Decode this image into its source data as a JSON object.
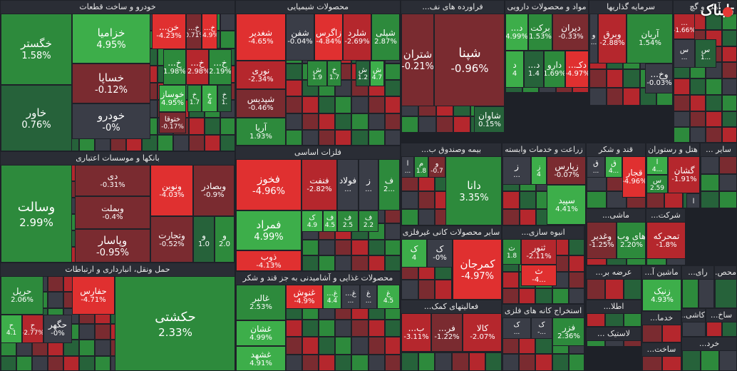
{
  "colors": {
    "strong_pos": "#3dae4a",
    "pos": "#2d8a3c",
    "weak_pos": "#26623a",
    "neutral": "#3a3d47",
    "weak_neg": "#7a2b30",
    "neg": "#b5272d",
    "strong_neg": "#e03030"
  },
  "logo": {
    "text": "تابناک"
  },
  "sectors": [
    {
      "id": "auto",
      "title": "خودرو و ساخت قطعات",
      "tiles": [
        {
          "sym": "خگستر",
          "chg": "1.58%"
        },
        {
          "sym": "خاور",
          "chg": "0.76%"
        },
        {
          "sym": "خزامیا",
          "chg": "4.95%"
        },
        {
          "sym": "خساپا",
          "chg": "-0.12%"
        },
        {
          "sym": "خودرو",
          "chg": "-0%"
        },
        {
          "sym": "خن...",
          "chg": "-4.23%"
        },
        {
          "sym": "خ...",
          "chg": "-0.71%"
        },
        {
          "sym": "خ...",
          "chg": "-4.9%"
        },
        {
          "sym": "خ...",
          "chg": "1.98%"
        },
        {
          "sym": "خ...",
          "chg": "-2.98%"
        },
        {
          "sym": "خ...",
          "chg": "2.19%"
        },
        {
          "sym": "خوساز",
          "chg": "4.95%"
        },
        {
          "sym": "خ",
          "chg": "1.7"
        },
        {
          "sym": "خ",
          "chg": "4"
        },
        {
          "sym": "خ",
          "chg": "1."
        },
        {
          "sym": "ختوقا",
          "chg": "-0.17%"
        }
      ]
    },
    {
      "id": "chem",
      "title": "محصولات شیمیایی",
      "tiles": [
        {
          "sym": "شغدیر",
          "chg": "-4.65%"
        },
        {
          "sym": "شفن",
          "chg": "-0.04%"
        },
        {
          "sym": "زاگرس",
          "chg": "-4.84%"
        },
        {
          "sym": "شلرد",
          "chg": "-2.69%"
        },
        {
          "sym": "شپلی",
          "chg": "2.87%"
        },
        {
          "sym": "نوری",
          "chg": "-2.34%"
        },
        {
          "sym": "شپدیس",
          "chg": "-0.46%"
        },
        {
          "sym": "آریا",
          "chg": "1.93%"
        },
        {
          "sym": "ش",
          "chg": "1.9"
        },
        {
          "sym": "خ",
          "chg": "1.7"
        },
        {
          "sym": "ش",
          "chg": "1.2"
        },
        {
          "sym": "ش",
          "chg": "4.7"
        }
      ]
    },
    {
      "id": "refinery",
      "title": "فراورده های نف...",
      "tiles": [
        {
          "sym": "شپنا",
          "chg": "-0.96%"
        },
        {
          "sym": "شتران",
          "chg": "-0.21%"
        },
        {
          "sym": "شاوان",
          "chg": "0.15%"
        }
      ]
    },
    {
      "id": "pharma",
      "title": "مواد و محصولات دارویی",
      "tiles": [
        {
          "sym": "دیران",
          "chg": "-0.33%"
        },
        {
          "sym": "برکت",
          "chg": "1.53%"
        },
        {
          "sym": "د...",
          "chg": "4.99%"
        },
        {
          "sym": "دکـ...",
          "chg": "-4.97%"
        },
        {
          "sym": "دارو",
          "chg": "1.69%"
        },
        {
          "sym": "د...",
          "chg": "1.4"
        },
        {
          "sym": "د",
          "chg": "4"
        }
      ]
    },
    {
      "id": "invest",
      "title": "سرمایه گذاریها",
      "tiles": [
        {
          "sym": "آریان",
          "chg": "1.54%"
        },
        {
          "sym": "وبرق",
          "chg": "-2.88%"
        },
        {
          "sym": "وخ...",
          "chg": "-0.03%"
        },
        {
          "sym": "و",
          "chg": "..."
        }
      ]
    },
    {
      "id": "iron",
      "title": "آهک و گچ",
      "tiles": [
        {
          "sym": "...",
          "chg": "-1.66%"
        },
        {
          "sym": "س",
          "chg": "1..."
        },
        {
          "sym": "س",
          "chg": "..."
        }
      ]
    },
    {
      "id": "bank",
      "title": "بانکها و موسسات اعتباری",
      "tiles": [
        {
          "sym": "وسالت",
          "chg": "2.99%"
        },
        {
          "sym": "دی",
          "chg": "-0.31%"
        },
        {
          "sym": "وبملت",
          "chg": "-0.4%"
        },
        {
          "sym": "وپاسار",
          "chg": "-0.95%"
        },
        {
          "sym": "ونوین",
          "chg": "-4.03%"
        },
        {
          "sym": "وبصادر",
          "chg": "-0.9%"
        },
        {
          "sym": "وتجارت",
          "chg": "-0.52%"
        },
        {
          "sym": "و",
          "chg": "1.0"
        },
        {
          "sym": "و",
          "chg": "2.0"
        }
      ]
    },
    {
      "id": "metals",
      "title": "فلزات اساسی",
      "tiles": [
        {
          "sym": "فخوز",
          "chg": "-4.96%"
        },
        {
          "sym": "فنفت",
          "chg": "-2.82%"
        },
        {
          "sym": "فولاد",
          "chg": "..."
        },
        {
          "sym": "ز",
          "chg": "..."
        },
        {
          "sym": "ف",
          "chg": "2..."
        },
        {
          "sym": "فمراد",
          "chg": "4.99%"
        },
        {
          "sym": "ک",
          "chg": "4.9"
        },
        {
          "sym": "ف",
          "chg": "4.5"
        },
        {
          "sym": "ف",
          "chg": "2.5"
        },
        {
          "sym": "ف",
          "chg": "2.2"
        },
        {
          "sym": "ذوب",
          "chg": "-4.13%"
        }
      ]
    },
    {
      "id": "insurance",
      "title": "بیمه وصندوق ب...",
      "tiles": [
        {
          "sym": "دانا",
          "chg": "3.35%"
        },
        {
          "sym": "و",
          "chg": "-0.7"
        },
        {
          "sym": "م",
          "chg": "1.8"
        },
        {
          "sym": "ا",
          "chg": "..."
        }
      ]
    },
    {
      "id": "agri",
      "title": "زراعت و خدمات وابسته",
      "tiles": [
        {
          "sym": "زپارس",
          "chg": "-0.07%"
        },
        {
          "sym": "ز",
          "chg": "4"
        },
        {
          "sym": "ز",
          "chg": "..."
        },
        {
          "sym": "سپید",
          "chg": "4.41%"
        }
      ]
    },
    {
      "id": "sugar",
      "title": "قند و شکر",
      "tiles": [
        {
          "sym": "قجار",
          "chg": "-4.96%"
        },
        {
          "sym": "ق",
          "chg": "4..."
        },
        {
          "sym": "ق",
          "chg": "..."
        }
      ]
    },
    {
      "id": "hotel",
      "title": "هتل و رستوران",
      "tiles": [
        {
          "sym": "گشان",
          "chg": "-1.91%"
        },
        {
          "sym": "ا",
          "chg": "4..."
        },
        {
          "sym": "س",
          "chg": "2.59"
        },
        {
          "sym": "ا",
          "chg": "..."
        }
      ]
    },
    {
      "id": "other",
      "title": "سایر ...",
      "tiles": []
    },
    {
      "id": "nonmetal",
      "title": "سایر محصولات کانی غیرفلزی",
      "tiles": [
        {
          "sym": "کمرجان",
          "chg": "-4.97%"
        },
        {
          "sym": "ک",
          "chg": "-0%"
        },
        {
          "sym": "ک",
          "chg": "4"
        }
      ]
    },
    {
      "id": "housing",
      "title": "انبوه سازی...",
      "tiles": [
        {
          "sym": "ثنور",
          "chg": "-2.11%"
        },
        {
          "sym": "ث",
          "chg": "1.8"
        },
        {
          "sym": "ث",
          "chg": "-4..."
        }
      ]
    },
    {
      "id": "food",
      "title": "محصولات غذایی و آشامیدنی به جز قند و شکر",
      "tiles": [
        {
          "sym": "غالبر",
          "chg": "2.53%"
        },
        {
          "sym": "غنوش",
          "chg": "-4.9%"
        },
        {
          "sym": "غ...",
          "chg": "4.4"
        },
        {
          "sym": "غ...",
          "chg": "..."
        },
        {
          "sym": "غ",
          "chg": "..."
        },
        {
          "sym": "غ",
          "chg": "4.5"
        },
        {
          "sym": "غشان",
          "chg": "4.99%"
        },
        {
          "sym": "غشهد",
          "chg": "4.91%"
        }
      ]
    },
    {
      "id": "transport",
      "title": "حمل ونقل، انبارداری و ارتباطات",
      "tiles": [
        {
          "sym": "حکشتی",
          "chg": "2.33%"
        },
        {
          "sym": "حفارس",
          "chg": "-4.71%"
        },
        {
          "sym": "حریل",
          "chg": "2.06%"
        },
        {
          "sym": "حگهر",
          "chg": "-0%"
        },
        {
          "sym": "ح",
          "chg": "-2.77%"
        },
        {
          "sym": "ح",
          "chg": "4.1"
        }
      ]
    },
    {
      "id": "commerce",
      "title": "فعالیتهای کمک...",
      "tiles": [
        {
          "sym": "کالا",
          "chg": "-2.07%"
        },
        {
          "sym": "فر...",
          "chg": "-1.22%"
        },
        {
          "sym": "ب...",
          "chg": "-3.11%"
        }
      ]
    },
    {
      "id": "mining",
      "title": "استخراج کانه های فلزی",
      "tiles": [
        {
          "sym": "فزر",
          "chg": "2.36%"
        },
        {
          "sym": "ک",
          "chg": "-..."
        },
        {
          "sym": "ک",
          "chg": "..."
        }
      ]
    },
    {
      "id": "machinery",
      "title": "ماشین آ...",
      "tiles": [
        {
          "sym": "زنیک",
          "chg": "4.93%"
        }
      ]
    },
    {
      "id": "wood",
      "title": "عرضه بر...",
      "tiles": []
    },
    {
      "id": "cement",
      "title": "ماشی...",
      "tiles": [
        {
          "sym": "های وب",
          "chg": "2.20%"
        },
        {
          "sym": "وغدیر",
          "chg": "-1.25%"
        },
        {
          "sym": "تمحرکه",
          "chg": "-1.8%"
        }
      ]
    },
    {
      "id": "cable",
      "title": "شرکت...",
      "tiles": []
    },
    {
      "id": "misc1",
      "title": "اطلا...",
      "tiles": []
    },
    {
      "id": "misc2",
      "title": "رای...",
      "tiles": []
    },
    {
      "id": "misc3",
      "title": "خدما...",
      "tiles": []
    },
    {
      "id": "misc4",
      "title": "محص...",
      "tiles": []
    },
    {
      "id": "misc5",
      "title": "کاشی...",
      "tiles": []
    },
    {
      "id": "misc6",
      "title": "ساخ...",
      "tiles": []
    },
    {
      "id": "misc7",
      "title": "لاستیک ...",
      "tiles": []
    },
    {
      "id": "misc8",
      "title": "ساخت...",
      "tiles": []
    },
    {
      "id": "misc9",
      "title": "خرد...",
      "tiles": []
    }
  ]
}
